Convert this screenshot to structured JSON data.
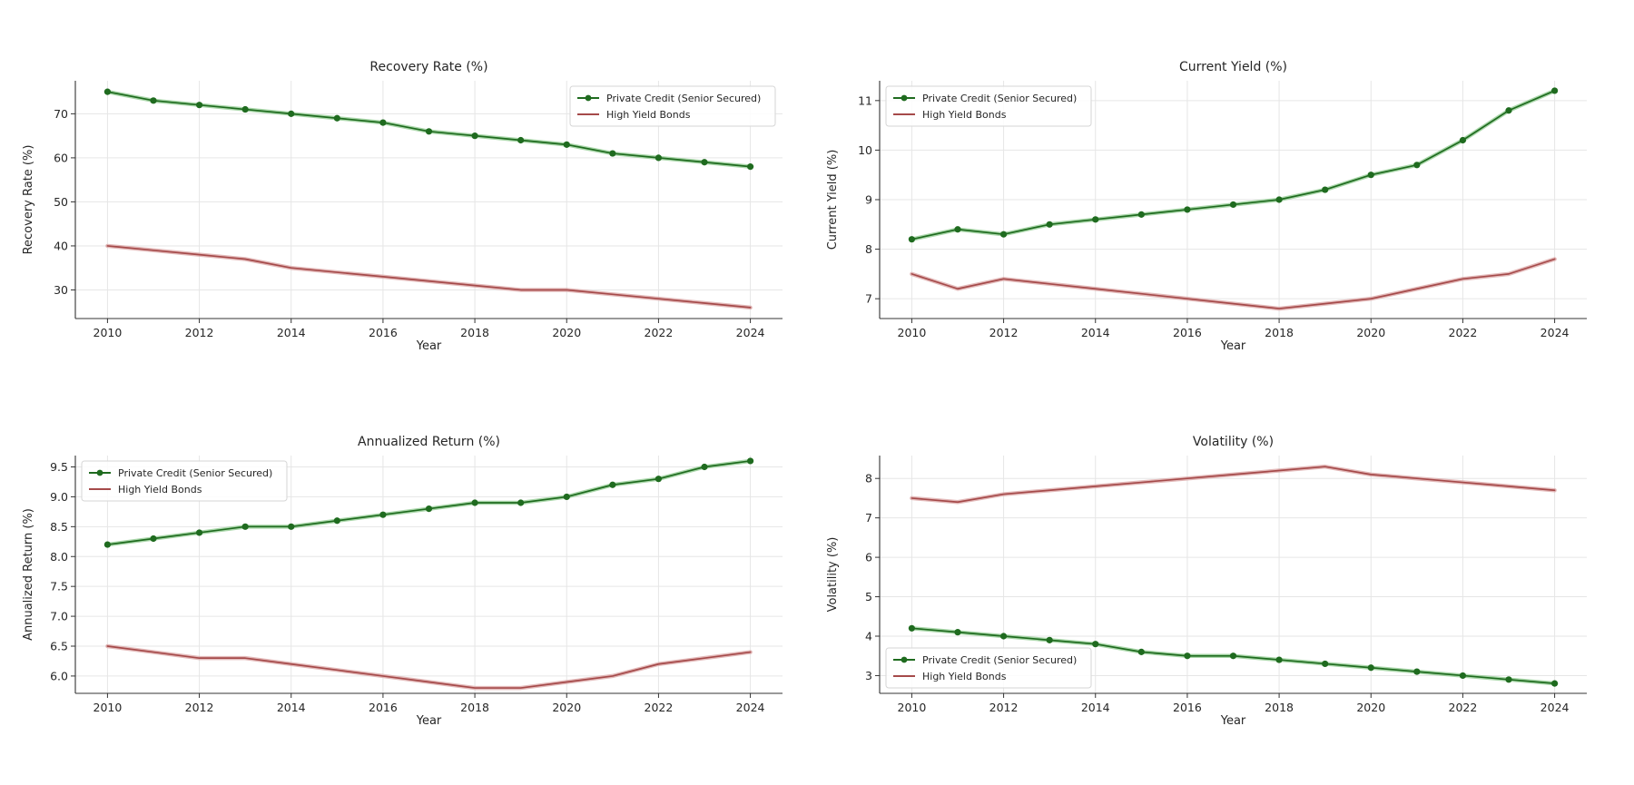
{
  "colors": {
    "private_credit": "#1f6b1f",
    "high_yield": "#a54a4a",
    "private_credit_halo": "#8ec98e",
    "high_yield_halo": "#d9a3a3"
  },
  "chart_data": [
    {
      "type": "line",
      "title": "Recovery Rate (%)",
      "xlabel": "Year",
      "ylabel": "Recovery Rate (%)",
      "x": [
        2010,
        2011,
        2012,
        2013,
        2014,
        2015,
        2016,
        2017,
        2018,
        2019,
        2020,
        2021,
        2022,
        2023,
        2024
      ],
      "xticks": [
        2010,
        2012,
        2014,
        2016,
        2018,
        2020,
        2022,
        2024
      ],
      "yticks": [
        30,
        40,
        50,
        60,
        70
      ],
      "xlim": [
        2009.3,
        2024.7
      ],
      "ylim": [
        23.5,
        77.5
      ],
      "grid": true,
      "legend": "top-right",
      "series": [
        {
          "name": "Private Credit (Senior Secured)",
          "values": [
            75,
            73,
            72,
            71,
            70,
            69,
            68,
            66,
            65,
            64,
            63,
            61,
            60,
            59,
            58
          ]
        },
        {
          "name": "High Yield Bonds",
          "values": [
            40,
            39,
            38,
            37,
            35,
            34,
            33,
            32,
            31,
            30,
            30,
            29,
            28,
            27,
            26
          ]
        }
      ]
    },
    {
      "type": "line",
      "title": "Current Yield (%)",
      "xlabel": "Year",
      "ylabel": "Current Yield (%)",
      "x": [
        2010,
        2011,
        2012,
        2013,
        2014,
        2015,
        2016,
        2017,
        2018,
        2019,
        2020,
        2021,
        2022,
        2023,
        2024
      ],
      "xticks": [
        2010,
        2012,
        2014,
        2016,
        2018,
        2020,
        2022,
        2024
      ],
      "yticks": [
        7,
        8,
        9,
        10,
        11
      ],
      "xlim": [
        2009.3,
        2024.7
      ],
      "ylim": [
        6.6,
        11.4
      ],
      "grid": true,
      "legend": "top-left",
      "series": [
        {
          "name": "Private Credit (Senior Secured)",
          "values": [
            8.2,
            8.4,
            8.3,
            8.5,
            8.6,
            8.7,
            8.8,
            8.9,
            9.0,
            9.2,
            9.5,
            9.7,
            10.2,
            10.8,
            11.2
          ]
        },
        {
          "name": "High Yield Bonds",
          "values": [
            7.5,
            7.2,
            7.4,
            7.3,
            7.2,
            7.1,
            7.0,
            6.9,
            6.8,
            6.9,
            7.0,
            7.2,
            7.4,
            7.5,
            7.8
          ]
        }
      ]
    },
    {
      "type": "line",
      "title": "Annualized Return (%)",
      "xlabel": "Year",
      "ylabel": "Annualized Return (%)",
      "x": [
        2010,
        2011,
        2012,
        2013,
        2014,
        2015,
        2016,
        2017,
        2018,
        2019,
        2020,
        2021,
        2022,
        2023,
        2024
      ],
      "xticks": [
        2010,
        2012,
        2014,
        2016,
        2018,
        2020,
        2022,
        2024
      ],
      "yticks": [
        6.0,
        6.5,
        7.0,
        7.5,
        8.0,
        8.5,
        9.0,
        9.5
      ],
      "xlim": [
        2009.3,
        2024.7
      ],
      "ylim": [
        5.71,
        9.69
      ],
      "grid": true,
      "legend": "top-left",
      "series": [
        {
          "name": "Private Credit (Senior Secured)",
          "values": [
            8.2,
            8.3,
            8.4,
            8.5,
            8.5,
            8.6,
            8.7,
            8.8,
            8.9,
            8.9,
            9.0,
            9.2,
            9.3,
            9.5,
            9.6
          ]
        },
        {
          "name": "High Yield Bonds",
          "values": [
            6.5,
            6.4,
            6.3,
            6.3,
            6.2,
            6.1,
            6.0,
            5.9,
            5.8,
            5.8,
            5.9,
            6.0,
            6.2,
            6.3,
            6.4
          ]
        }
      ]
    },
    {
      "type": "line",
      "title": "Volatility (%)",
      "xlabel": "Year",
      "ylabel": "Volatility (%)",
      "x": [
        2010,
        2011,
        2012,
        2013,
        2014,
        2015,
        2016,
        2017,
        2018,
        2019,
        2020,
        2021,
        2022,
        2023,
        2024
      ],
      "xticks": [
        2010,
        2012,
        2014,
        2016,
        2018,
        2020,
        2022,
        2024
      ],
      "yticks": [
        3,
        4,
        5,
        6,
        7,
        8
      ],
      "xlim": [
        2009.3,
        2024.7
      ],
      "ylim": [
        2.55,
        8.58
      ],
      "grid": true,
      "legend": "bottom-left",
      "series": [
        {
          "name": "Private Credit (Senior Secured)",
          "values": [
            4.2,
            4.1,
            4.0,
            3.9,
            3.8,
            3.6,
            3.5,
            3.5,
            3.4,
            3.3,
            3.2,
            3.1,
            3.0,
            2.9,
            2.8
          ]
        },
        {
          "name": "High Yield Bonds",
          "values": [
            7.5,
            7.4,
            7.6,
            7.7,
            7.8,
            7.9,
            8.0,
            8.1,
            8.2,
            8.3,
            8.1,
            8.0,
            7.9,
            7.8,
            7.7
          ]
        }
      ]
    }
  ]
}
